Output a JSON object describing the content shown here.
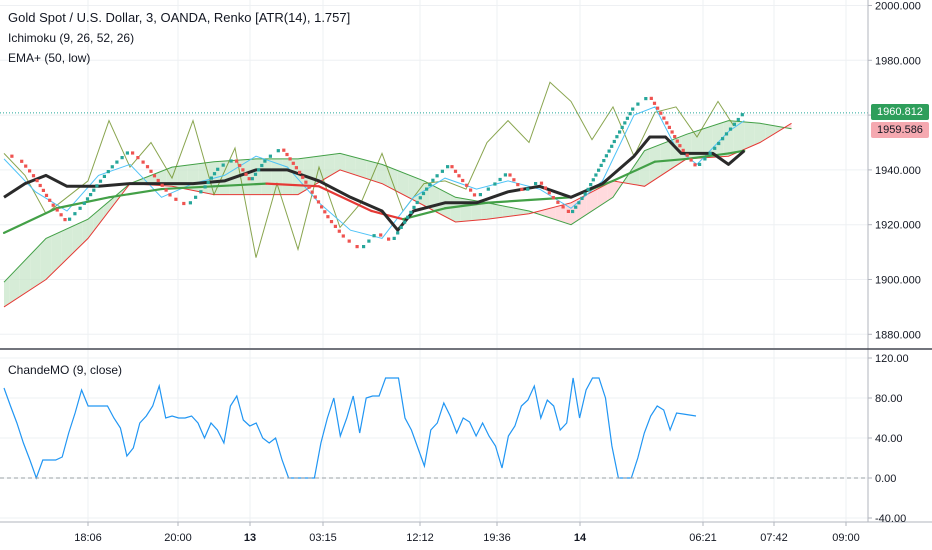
{
  "chart_data": {
    "type": "line",
    "title": "Gold Spot / U.S. Dollar, 3, OANDA, Renko [ATR(14), 1.757]",
    "indicators": [
      "Ichimoku (9, 26, 52, 26)",
      "EMA+ (50, low)"
    ],
    "x_ticks": [
      "18:06",
      "20:00",
      "13",
      "03:15",
      "12:12",
      "19:36",
      "14",
      "06:21",
      "07:42",
      "09:00"
    ],
    "bold_x_ticks": [
      "13",
      "14"
    ],
    "price_axis": {
      "ticks": [
        "2000.000",
        "1980.000",
        "1960.000",
        "1940.000",
        "1920.000",
        "1900.000",
        "1880.000"
      ],
      "ylim": [
        1875,
        2002
      ]
    },
    "price_tags": {
      "current": "1960.812",
      "ema": "1959.586"
    },
    "colors": {
      "up": "#26a69a",
      "down": "#ef5350",
      "ichimoku_green": "#43a047",
      "ichimoku_red": "#e53935",
      "cloud_green": "#c8e6c9",
      "cloud_red": "#ffcdd2",
      "price_line": "#2a2a2a",
      "cmo": "#2196f3",
      "lagging": "#6b8e23",
      "tenkan": "#4fc3f7"
    },
    "series": [
      {
        "key": "price",
        "type": "renko",
        "points": [
          [
            0,
            1946
          ],
          [
            3,
            1944
          ],
          [
            6,
            1937
          ],
          [
            9,
            1928
          ],
          [
            12,
            1921
          ],
          [
            15,
            1927
          ],
          [
            18,
            1935
          ],
          [
            21,
            1942
          ],
          [
            24,
            1947
          ],
          [
            27,
            1942
          ],
          [
            29,
            1937
          ],
          [
            32,
            1930
          ],
          [
            35,
            1927
          ],
          [
            38,
            1933
          ],
          [
            41,
            1941
          ],
          [
            44,
            1944
          ],
          [
            47,
            1936
          ],
          [
            50,
            1944
          ],
          [
            53,
            1948
          ],
          [
            56,
            1940
          ],
          [
            59,
            1931
          ],
          [
            62,
            1922
          ],
          [
            65,
            1915
          ],
          [
            68,
            1911
          ],
          [
            71,
            1917
          ],
          [
            74,
            1914
          ],
          [
            76,
            1920
          ],
          [
            79,
            1929
          ],
          [
            82,
            1937
          ],
          [
            85,
            1942
          ],
          [
            87,
            1937
          ],
          [
            90,
            1930
          ],
          [
            93,
            1934
          ],
          [
            96,
            1939
          ],
          [
            99,
            1932
          ],
          [
            102,
            1936
          ],
          [
            105,
            1929
          ],
          [
            108,
            1924
          ],
          [
            111,
            1932
          ],
          [
            113,
            1939
          ],
          [
            117,
            1953
          ],
          [
            120,
            1963
          ],
          [
            123,
            1967
          ],
          [
            126,
            1958
          ],
          [
            129,
            1948
          ],
          [
            132,
            1941
          ],
          [
            135,
            1947
          ],
          [
            138,
            1954
          ],
          [
            141,
            1961
          ]
        ]
      },
      {
        "key": "price_line",
        "points": [
          [
            0,
            1930
          ],
          [
            4,
            1935
          ],
          [
            8,
            1938
          ],
          [
            12,
            1934
          ],
          [
            18,
            1934
          ],
          [
            24,
            1935
          ],
          [
            30,
            1935
          ],
          [
            36,
            1935
          ],
          [
            42,
            1936
          ],
          [
            48,
            1940
          ],
          [
            54,
            1940
          ],
          [
            60,
            1936
          ],
          [
            66,
            1930
          ],
          [
            72,
            1925
          ],
          [
            75,
            1918
          ],
          [
            78,
            1925
          ],
          [
            84,
            1928
          ],
          [
            90,
            1928
          ],
          [
            96,
            1932
          ],
          [
            102,
            1934
          ],
          [
            108,
            1930
          ],
          [
            114,
            1935
          ],
          [
            120,
            1945
          ],
          [
            123,
            1952
          ],
          [
            126,
            1952
          ],
          [
            129,
            1946
          ],
          [
            132,
            1946
          ],
          [
            135,
            1946
          ],
          [
            138,
            1942
          ],
          [
            141,
            1947
          ]
        ]
      },
      {
        "key": "kijun",
        "points": [
          [
            0,
            1917
          ],
          [
            10,
            1926
          ],
          [
            20,
            1930
          ],
          [
            30,
            1933
          ],
          [
            40,
            1934
          ],
          [
            50,
            1935
          ],
          [
            60,
            1934
          ],
          [
            70,
            1925
          ],
          [
            76,
            1922
          ],
          [
            84,
            1926
          ],
          [
            92,
            1928
          ],
          [
            100,
            1929
          ],
          [
            108,
            1930
          ],
          [
            116,
            1936
          ],
          [
            124,
            1943
          ],
          [
            130,
            1944
          ],
          [
            138,
            1946
          ],
          [
            141,
            1947
          ]
        ]
      },
      {
        "key": "tenkan",
        "points": [
          [
            0,
            1944
          ],
          [
            6,
            1932
          ],
          [
            12,
            1925
          ],
          [
            18,
            1938
          ],
          [
            24,
            1942
          ],
          [
            30,
            1930
          ],
          [
            36,
            1935
          ],
          [
            42,
            1938
          ],
          [
            48,
            1945
          ],
          [
            54,
            1941
          ],
          [
            60,
            1928
          ],
          [
            66,
            1918
          ],
          [
            72,
            1915
          ],
          [
            78,
            1930
          ],
          [
            84,
            1937
          ],
          [
            90,
            1933
          ],
          [
            96,
            1936
          ],
          [
            102,
            1933
          ],
          [
            108,
            1926
          ],
          [
            114,
            1936
          ],
          [
            120,
            1960
          ],
          [
            124,
            1963
          ],
          [
            128,
            1948
          ],
          [
            132,
            1942
          ],
          [
            138,
            1954
          ],
          [
            141,
            1958
          ]
        ]
      },
      {
        "key": "lagging",
        "points": [
          [
            0,
            1946
          ],
          [
            4,
            1938
          ],
          [
            8,
            1924
          ],
          [
            12,
            1930
          ],
          [
            16,
            1936
          ],
          [
            20,
            1958
          ],
          [
            24,
            1941
          ],
          [
            28,
            1950
          ],
          [
            32,
            1937
          ],
          [
            36,
            1958
          ],
          [
            40,
            1931
          ],
          [
            44,
            1948
          ],
          [
            48,
            1908
          ],
          [
            52,
            1935
          ],
          [
            56,
            1911
          ],
          [
            60,
            1941
          ],
          [
            64,
            1919
          ],
          [
            68,
            1928
          ],
          [
            72,
            1946
          ],
          [
            76,
            1925
          ],
          [
            80,
            1935
          ],
          [
            84,
            1936
          ],
          [
            88,
            1933
          ],
          [
            92,
            1950
          ],
          [
            96,
            1958
          ],
          [
            100,
            1950
          ],
          [
            104,
            1972
          ],
          [
            108,
            1965
          ],
          [
            112,
            1951
          ],
          [
            116,
            1963
          ],
          [
            120,
            1945
          ],
          [
            124,
            1961
          ],
          [
            128,
            1963
          ],
          [
            132,
            1952
          ],
          [
            136,
            1965
          ],
          [
            139,
            1956
          ]
        ]
      },
      {
        "key": "span_a",
        "points": [
          [
            0,
            1899
          ],
          [
            8,
            1915
          ],
          [
            16,
            1922
          ],
          [
            24,
            1935
          ],
          [
            32,
            1941
          ],
          [
            40,
            1943
          ],
          [
            48,
            1944
          ],
          [
            56,
            1944
          ],
          [
            64,
            1946
          ],
          [
            72,
            1942
          ],
          [
            80,
            1936
          ],
          [
            86,
            1930
          ],
          [
            92,
            1928
          ],
          [
            100,
            1925
          ],
          [
            108,
            1920
          ],
          [
            116,
            1930
          ],
          [
            122,
            1947
          ],
          [
            130,
            1953
          ],
          [
            138,
            1958
          ],
          [
            144,
            1957
          ],
          [
            150,
            1955
          ]
        ]
      },
      {
        "key": "span_b",
        "points": [
          [
            0,
            1890
          ],
          [
            8,
            1900
          ],
          [
            16,
            1915
          ],
          [
            24,
            1935
          ],
          [
            32,
            1934
          ],
          [
            40,
            1931
          ],
          [
            48,
            1931
          ],
          [
            56,
            1931
          ],
          [
            64,
            1940
          ],
          [
            72,
            1935
          ],
          [
            80,
            1927
          ],
          [
            86,
            1921
          ],
          [
            92,
            1922
          ],
          [
            100,
            1924
          ],
          [
            108,
            1928
          ],
          [
            116,
            1936
          ],
          [
            122,
            1934
          ],
          [
            130,
            1944
          ],
          [
            138,
            1945
          ],
          [
            144,
            1950
          ],
          [
            150,
            1957
          ]
        ]
      }
    ],
    "cmo": {
      "label": "ChandeMO (9, close)",
      "ticks": [
        "120.00",
        "80.00",
        "40.00",
        "0.00",
        "-40.00"
      ],
      "ylim": [
        -40,
        120
      ],
      "values": [
        90,
        72,
        55,
        35,
        18,
        0,
        18,
        18,
        18,
        21,
        45,
        65,
        88,
        72,
        72,
        72,
        72,
        60,
        50,
        22,
        30,
        55,
        62,
        72,
        92,
        60,
        62,
        60,
        60,
        62,
        55,
        40,
        55,
        48,
        35,
        72,
        82,
        58,
        52,
        55,
        40,
        35,
        40,
        18,
        0,
        0,
        0,
        0,
        0,
        35,
        60,
        80,
        42,
        60,
        82,
        45,
        80,
        82,
        82,
        100,
        100,
        100,
        60,
        48,
        30,
        12,
        48,
        55,
        75,
        62,
        45,
        60,
        56,
        42,
        55,
        42,
        32,
        10,
        42,
        52,
        72,
        78,
        92,
        60,
        78,
        72,
        48,
        55,
        100,
        60,
        88,
        100,
        100,
        80,
        32,
        0,
        0,
        0,
        20,
        45,
        62,
        72,
        68,
        48,
        65,
        64,
        63,
        62
      ]
    }
  }
}
